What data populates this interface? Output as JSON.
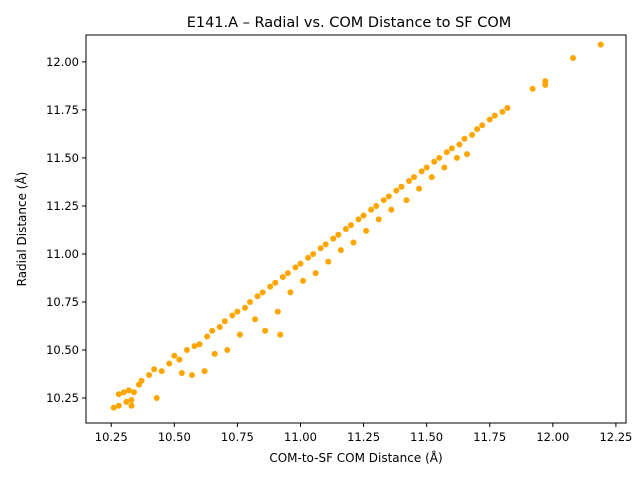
{
  "chart_data": {
    "type": "scatter",
    "title": "E141.A – Radial vs. COM Distance to SF COM",
    "xlabel": "COM-to-SF COM Distance (Å)",
    "ylabel": "Radial Distance (Å)",
    "xlim": [
      10.15,
      12.29
    ],
    "ylim": [
      10.12,
      12.14
    ],
    "xticks": [
      10.25,
      10.5,
      10.75,
      11.0,
      11.25,
      11.5,
      11.75,
      12.0,
      12.25
    ],
    "xtick_labels": [
      "10.25",
      "10.50",
      "10.75",
      "11.00",
      "11.25",
      "11.50",
      "11.75",
      "12.00",
      "12.25"
    ],
    "yticks": [
      10.25,
      10.5,
      10.75,
      11.0,
      11.25,
      11.5,
      11.75,
      12.0
    ],
    "ytick_labels": [
      "10.25",
      "10.50",
      "10.75",
      "11.00",
      "11.25",
      "11.50",
      "11.75",
      "12.00"
    ],
    "grid": false,
    "legend": "none",
    "marker_color": "#FFA500",
    "series": [
      {
        "points": [
          [
            10.26,
            10.2
          ],
          [
            10.28,
            10.21
          ],
          [
            10.28,
            10.27
          ],
          [
            10.3,
            10.28
          ],
          [
            10.31,
            10.23
          ],
          [
            10.32,
            10.29
          ],
          [
            10.33,
            10.21
          ],
          [
            10.33,
            10.24
          ],
          [
            10.34,
            10.28
          ],
          [
            10.36,
            10.32
          ],
          [
            10.37,
            10.34
          ],
          [
            10.4,
            10.37
          ],
          [
            10.42,
            10.4
          ],
          [
            10.43,
            10.25
          ],
          [
            10.45,
            10.39
          ],
          [
            10.48,
            10.43
          ],
          [
            10.5,
            10.47
          ],
          [
            10.52,
            10.45
          ],
          [
            10.53,
            10.38
          ],
          [
            10.55,
            10.5
          ],
          [
            10.57,
            10.37
          ],
          [
            10.58,
            10.52
          ],
          [
            10.6,
            10.53
          ],
          [
            10.62,
            10.39
          ],
          [
            10.63,
            10.57
          ],
          [
            10.65,
            10.6
          ],
          [
            10.66,
            10.48
          ],
          [
            10.68,
            10.62
          ],
          [
            10.7,
            10.65
          ],
          [
            10.71,
            10.5
          ],
          [
            10.73,
            10.68
          ],
          [
            10.75,
            10.7
          ],
          [
            10.76,
            10.58
          ],
          [
            10.78,
            10.72
          ],
          [
            10.8,
            10.75
          ],
          [
            10.82,
            10.66
          ],
          [
            10.83,
            10.78
          ],
          [
            10.85,
            10.8
          ],
          [
            10.86,
            10.6
          ],
          [
            10.88,
            10.83
          ],
          [
            10.9,
            10.85
          ],
          [
            10.91,
            10.7
          ],
          [
            10.92,
            10.58
          ],
          [
            10.93,
            10.88
          ],
          [
            10.95,
            10.9
          ],
          [
            10.96,
            10.8
          ],
          [
            10.98,
            10.93
          ],
          [
            11.0,
            10.95
          ],
          [
            11.01,
            10.86
          ],
          [
            11.03,
            10.98
          ],
          [
            11.05,
            11.0
          ],
          [
            11.06,
            10.9
          ],
          [
            11.08,
            11.03
          ],
          [
            11.1,
            11.05
          ],
          [
            11.11,
            10.96
          ],
          [
            11.13,
            11.08
          ],
          [
            11.15,
            11.1
          ],
          [
            11.16,
            11.02
          ],
          [
            11.18,
            11.13
          ],
          [
            11.2,
            11.15
          ],
          [
            11.21,
            11.06
          ],
          [
            11.23,
            11.18
          ],
          [
            11.25,
            11.2
          ],
          [
            11.26,
            11.12
          ],
          [
            11.28,
            11.23
          ],
          [
            11.3,
            11.25
          ],
          [
            11.31,
            11.18
          ],
          [
            11.33,
            11.28
          ],
          [
            11.35,
            11.3
          ],
          [
            11.36,
            11.23
          ],
          [
            11.38,
            11.33
          ],
          [
            11.4,
            11.35
          ],
          [
            11.42,
            11.28
          ],
          [
            11.43,
            11.38
          ],
          [
            11.45,
            11.4
          ],
          [
            11.47,
            11.34
          ],
          [
            11.48,
            11.43
          ],
          [
            11.5,
            11.45
          ],
          [
            11.52,
            11.4
          ],
          [
            11.53,
            11.48
          ],
          [
            11.55,
            11.5
          ],
          [
            11.57,
            11.45
          ],
          [
            11.58,
            11.53
          ],
          [
            11.6,
            11.55
          ],
          [
            11.62,
            11.5
          ],
          [
            11.63,
            11.57
          ],
          [
            11.65,
            11.6
          ],
          [
            11.66,
            11.52
          ],
          [
            11.68,
            11.62
          ],
          [
            11.7,
            11.65
          ],
          [
            11.72,
            11.67
          ],
          [
            11.75,
            11.7
          ],
          [
            11.77,
            11.72
          ],
          [
            11.8,
            11.74
          ],
          [
            11.82,
            11.76
          ],
          [
            11.92,
            11.86
          ],
          [
            11.97,
            11.9
          ],
          [
            11.97,
            11.88
          ],
          [
            12.08,
            12.02
          ],
          [
            12.19,
            12.09
          ]
        ]
      }
    ]
  }
}
